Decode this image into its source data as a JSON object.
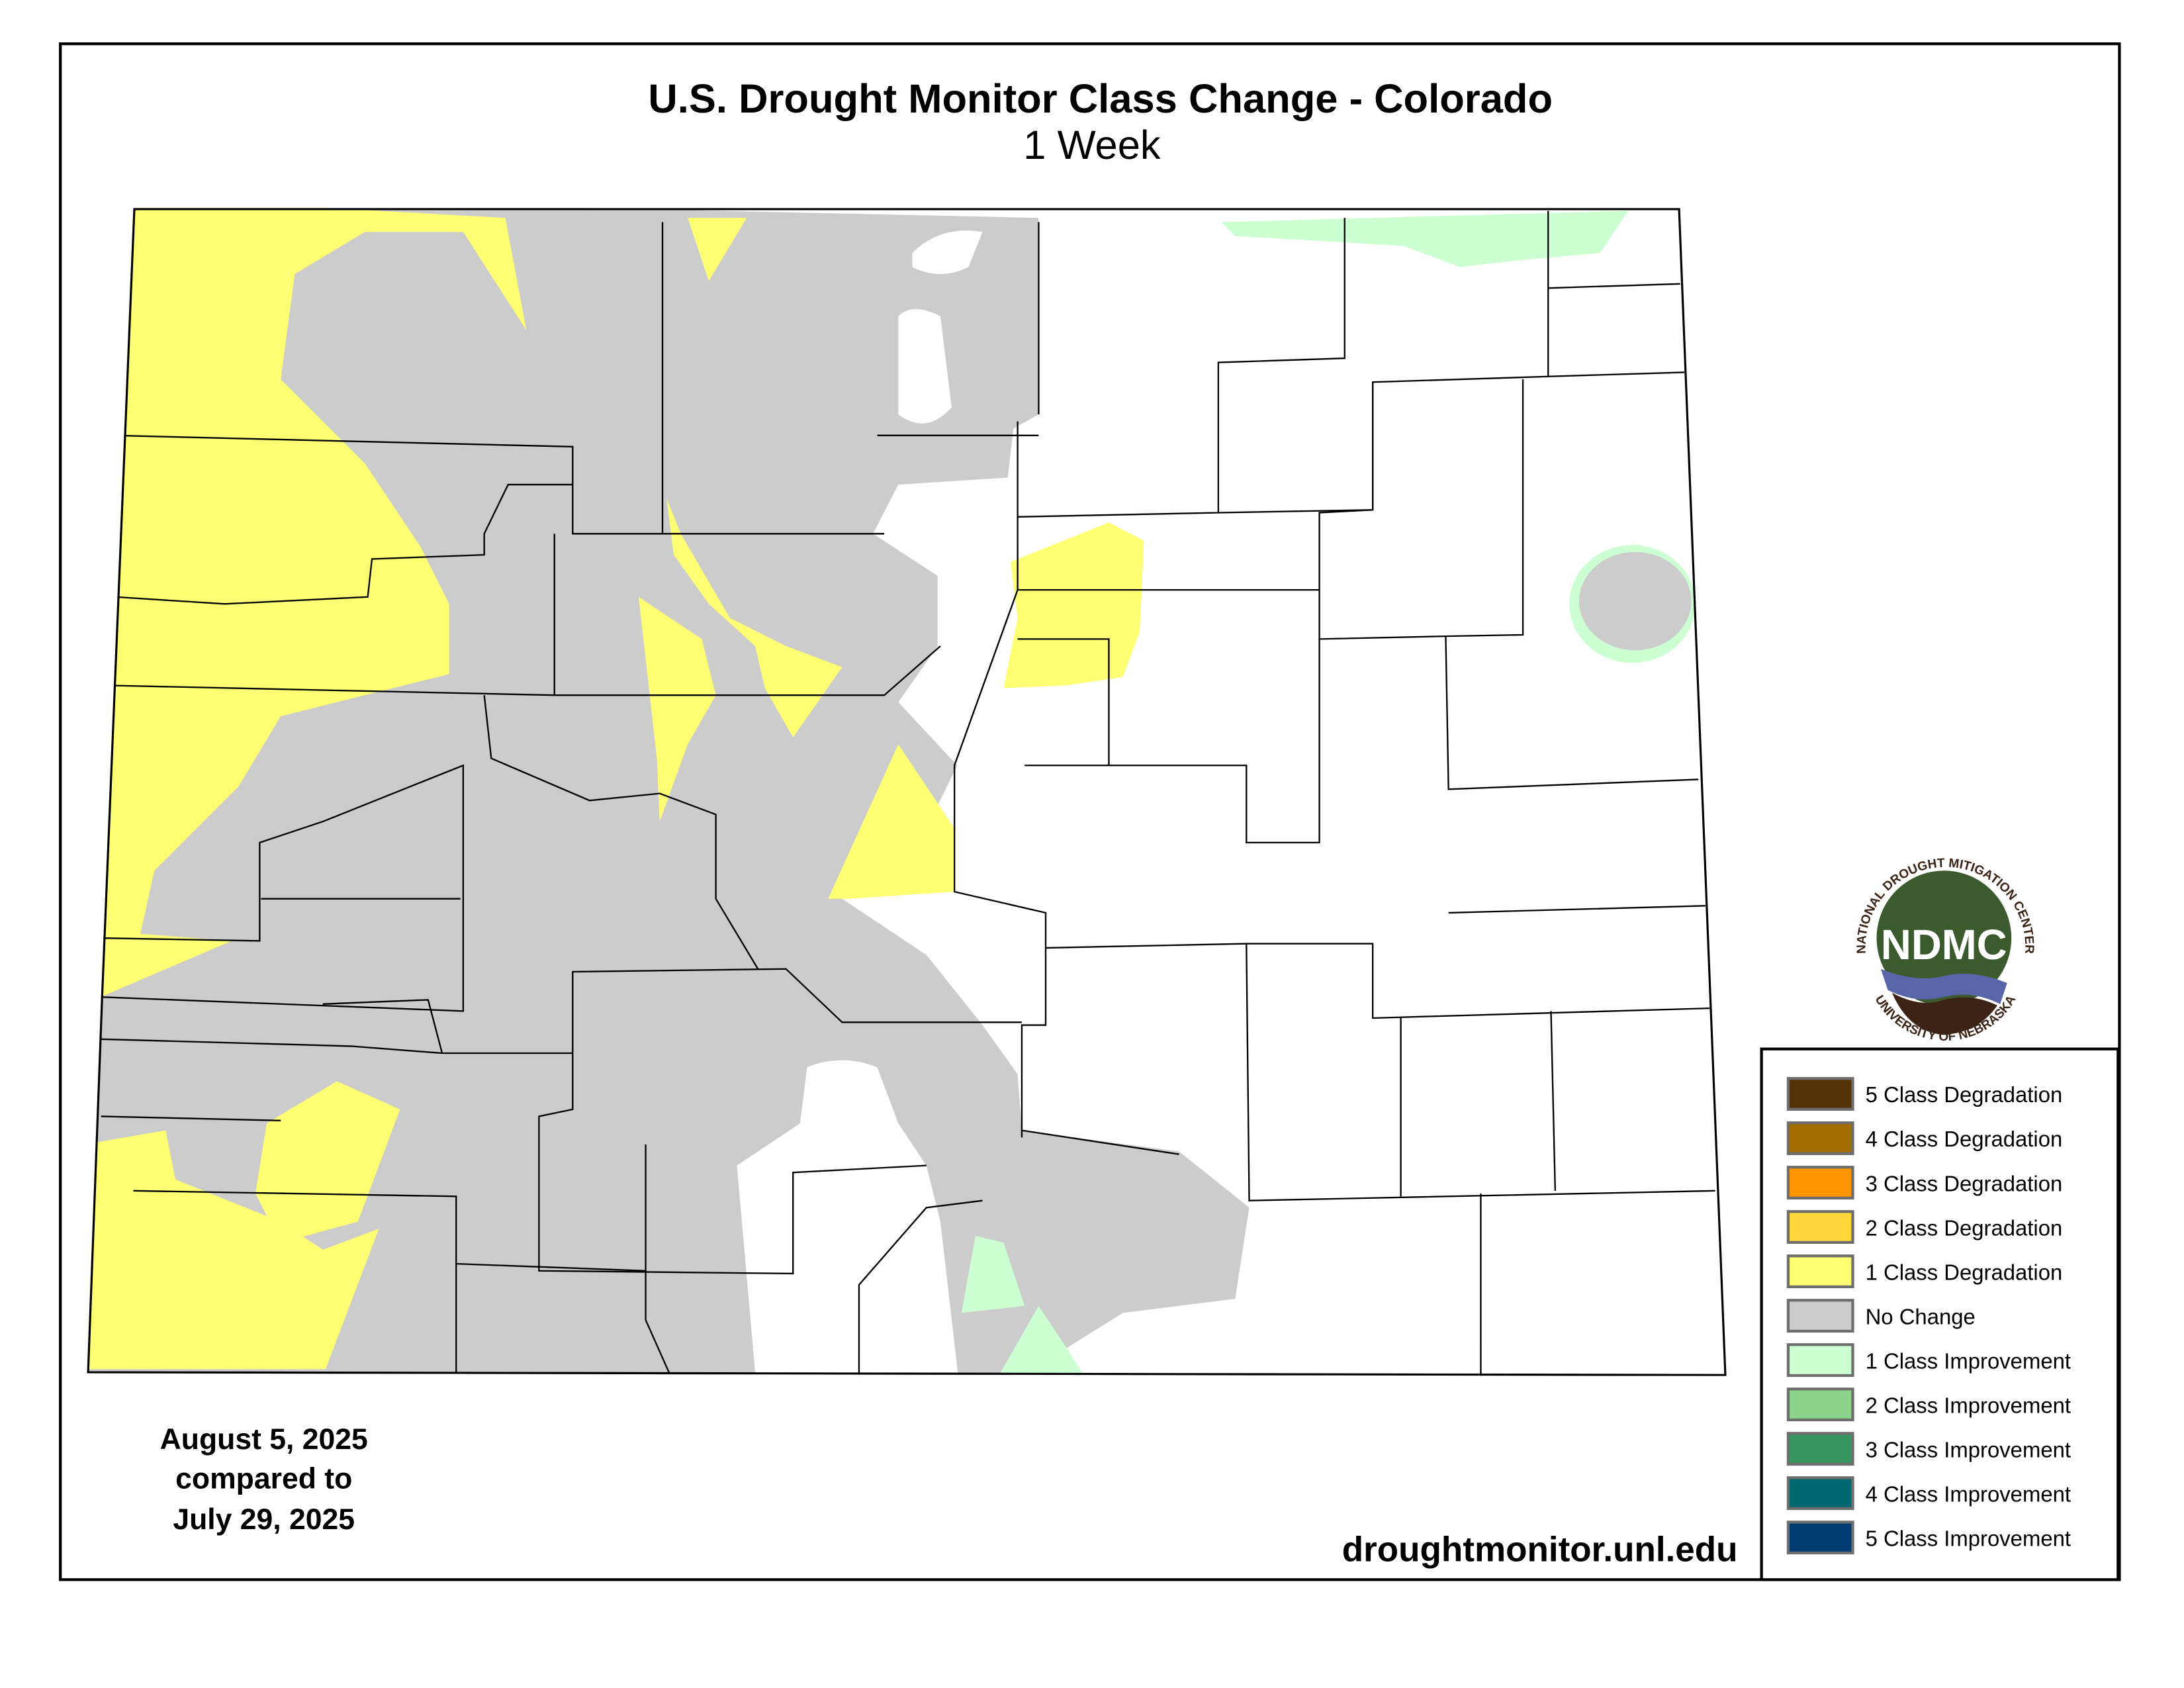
{
  "title": "U.S. Drought Monitor Class Change - Colorado",
  "subtitle": "1 Week",
  "date_block": {
    "line1": "August 5, 2025",
    "line2": "compared to",
    "line3": "July 29, 2025"
  },
  "website": "droughtmonitor.unl.edu",
  "logo": {
    "acronym": "NDMC",
    "top_text": "NATIONAL DROUGHT MITIGATION CENTER",
    "bottom_text": "UNIVERSITY OF NEBRASKA"
  },
  "legend": [
    {
      "label": "5 Class Degradation",
      "color": "#55330A"
    },
    {
      "label": "4 Class Degradation",
      "color": "#A36D00"
    },
    {
      "label": "3 Class Degradation",
      "color": "#FF9600"
    },
    {
      "label": "2 Class Degradation",
      "color": "#FFD73A"
    },
    {
      "label": "1 Class Degradation",
      "color": "#FFFF73"
    },
    {
      "label": "No Change",
      "color": "#CCCCCC"
    },
    {
      "label": "1 Class Improvement",
      "color": "#CCFFD2"
    },
    {
      "label": "2 Class Improvement",
      "color": "#8CD48C"
    },
    {
      "label": "3 Class Improvement",
      "color": "#37955F"
    },
    {
      "label": "4 Class Improvement",
      "color": "#006770"
    },
    {
      "label": "5 Class Improvement",
      "color": "#003B73"
    }
  ]
}
